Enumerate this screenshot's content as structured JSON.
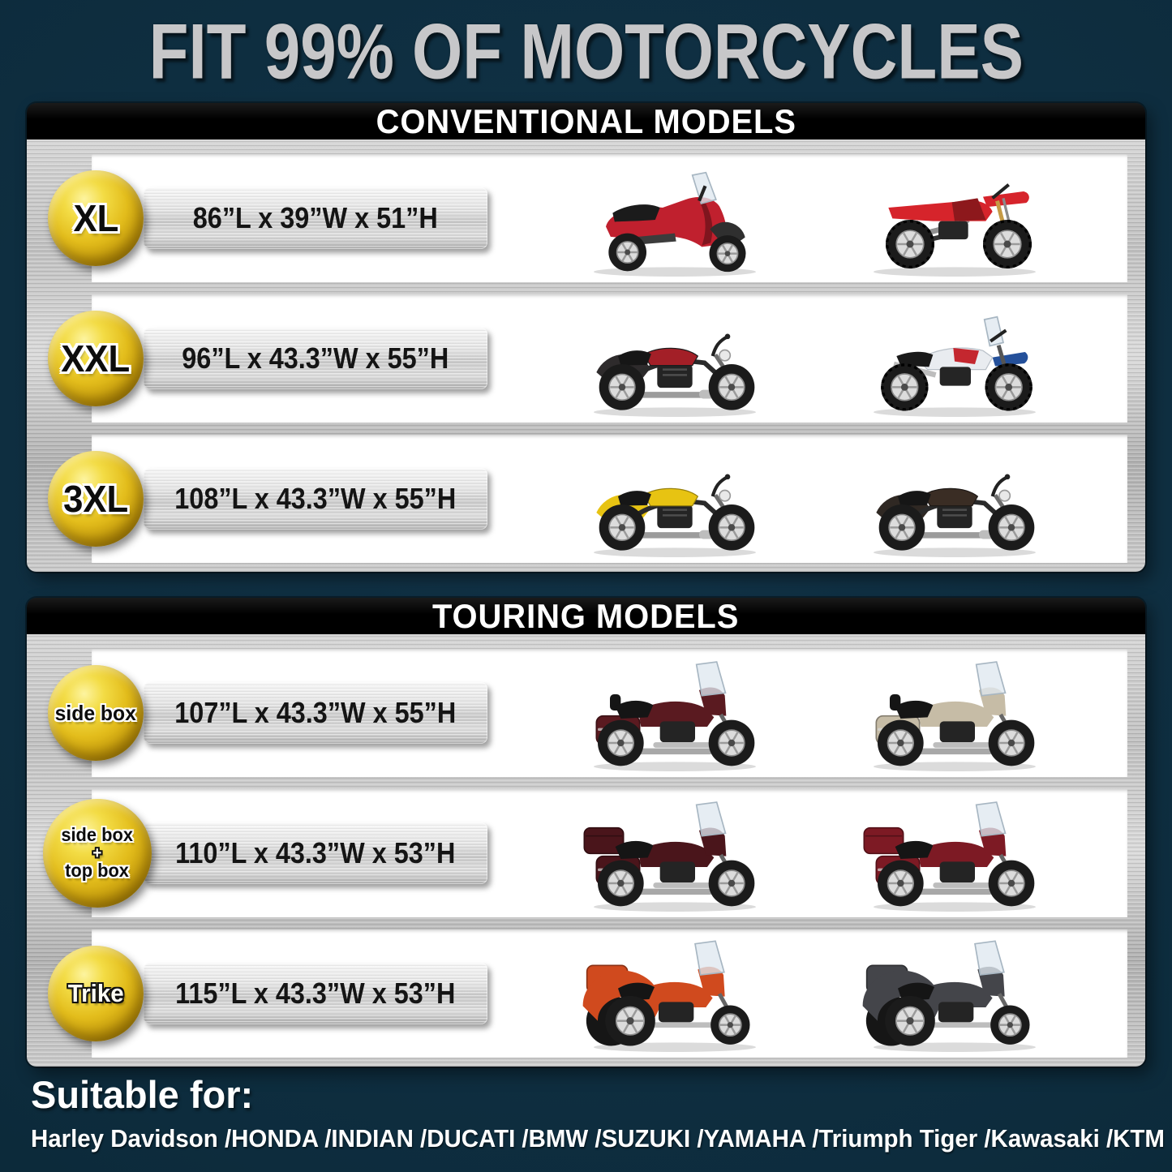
{
  "title": "FIT 99% OF MOTORCYCLES",
  "colors": {
    "background_navy": "#0d2c3d",
    "badge_yellow": "#e3bd1c",
    "header_bar_black": "#000000",
    "panel_silver": "#c6c6c6",
    "row_white": "#ffffff",
    "title_silver": "#c7c7c9",
    "dimension_text": "#141414"
  },
  "sections": [
    {
      "title": "CONVENTIONAL MODELS",
      "rows": [
        {
          "badge": {
            "lines": [
              "XL"
            ],
            "light": []
          },
          "dimensions": "86”L x 39”W x 51”H",
          "bikes": [
            {
              "name": "red-adventure-scooter",
              "type": "scooter",
              "color": "#c0202e"
            },
            {
              "name": "red-dirt-bike",
              "type": "dirt",
              "color": "#d6242b"
            }
          ]
        },
        {
          "badge": {
            "lines": [
              "XXL"
            ],
            "light": []
          },
          "dimensions": "96”L x 43.3”W x 55”H",
          "bikes": [
            {
              "name": "black-red-cruiser",
              "type": "cruiser",
              "color": "#2e2b2c",
              "accent": "#a31f27"
            },
            {
              "name": "white-blue-adventure-bike",
              "type": "adventure",
              "color": "#e9ecf0",
              "accent": "#24509a",
              "accent2": "#c4272f"
            }
          ]
        },
        {
          "badge": {
            "lines": [
              "3XL"
            ],
            "light": []
          },
          "dimensions": "108”L x 43.3”W x 55”H",
          "bikes": [
            {
              "name": "yellow-chopper",
              "type": "cruiser",
              "color": "#e7c312",
              "accent": "#e7c312"
            },
            {
              "name": "black-cruiser",
              "type": "cruiser",
              "color": "#2f2823",
              "accent": "#3a2d24"
            }
          ]
        }
      ]
    },
    {
      "title": "TOURING MODELS",
      "rows": [
        {
          "badge": {
            "lines": [
              "side box"
            ],
            "light": []
          },
          "dimensions": "107”L x 43.3”W x 55”H",
          "bikes": [
            {
              "name": "maroon-touring-bike-windshield",
              "type": "touring",
              "color": "#5a1a20"
            },
            {
              "name": "tan-touring-bagger",
              "type": "touring",
              "color": "#c6bca6"
            }
          ]
        },
        {
          "badge": {
            "lines": [
              "side box",
              "+",
              "top box"
            ],
            "light": [
              1
            ]
          },
          "dimensions": "110”L x 43.3”W x 53”H",
          "bikes": [
            {
              "name": "maroon-full-dress-tourer",
              "type": "touringTop",
              "color": "#4a151b"
            },
            {
              "name": "dark-red-gold-wing-tourer",
              "type": "touringTop",
              "color": "#7d1a24"
            }
          ]
        },
        {
          "badge": {
            "lines": [
              "Trike"
            ],
            "light": [
              0
            ]
          },
          "dimensions": "115”L x 43.3”W x 53”H",
          "bikes": [
            {
              "name": "orange-gold-wing-trike",
              "type": "trike",
              "color": "#d04a1e"
            },
            {
              "name": "charcoal-trike",
              "type": "trike",
              "color": "#44454a"
            }
          ]
        }
      ]
    }
  ],
  "footer": {
    "suitable_for_label": "Suitable for:",
    "brands": "Harley Davidson /HONDA /INDIAN /DUCATI /BMW /SUZUKI /YAMAHA /Triumph Tiger /Kawasaki /KTM"
  }
}
